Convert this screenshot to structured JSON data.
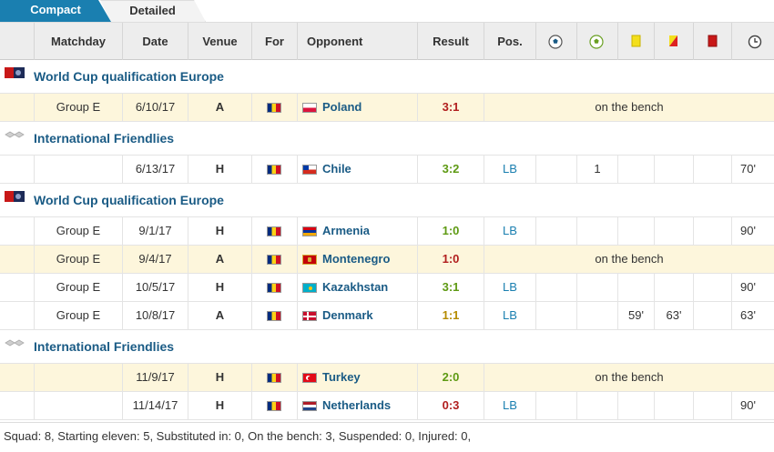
{
  "tabs": {
    "compact": "Compact",
    "detailed": "Detailed"
  },
  "columns": {
    "matchday": "Matchday",
    "date": "Date",
    "venue": "Venue",
    "for": "For",
    "opponent": "Opponent",
    "result": "Result",
    "pos": "Pos."
  },
  "header_icons": [
    "goals-ball-icon",
    "assists-ball-icon",
    "yellow-card-icon",
    "second-yellow-card-icon",
    "red-card-icon",
    "minutes-clock-icon"
  ],
  "competitions": {
    "wcq1": "World Cup qualification Europe",
    "fr1": "International Friendlies",
    "wcq2": "World Cup qualification Europe",
    "fr2": "International Friendlies"
  },
  "rows": [
    {
      "matchday": "Group E",
      "date": "6/10/17",
      "venue": "A",
      "opponent": "Poland",
      "result": "3:1",
      "result_type": "loss",
      "bench": "on the bench",
      "opp_flag": "poland"
    },
    {
      "matchday": "",
      "date": "6/13/17",
      "venue": "H",
      "opponent": "Chile",
      "result": "3:2",
      "result_type": "win",
      "pos": "LB",
      "assists": "1",
      "minutes": "70'",
      "opp_flag": "chile"
    },
    {
      "matchday": "Group E",
      "date": "9/1/17",
      "venue": "H",
      "opponent": "Armenia",
      "result": "1:0",
      "result_type": "win",
      "pos": "LB",
      "minutes": "90'",
      "opp_flag": "armenia"
    },
    {
      "matchday": "Group E",
      "date": "9/4/17",
      "venue": "A",
      "opponent": "Montenegro",
      "result": "1:0",
      "result_type": "loss",
      "bench": "on the bench",
      "opp_flag": "montenegro"
    },
    {
      "matchday": "Group E",
      "date": "10/5/17",
      "venue": "H",
      "opponent": "Kazakhstan",
      "result": "3:1",
      "result_type": "win",
      "pos": "LB",
      "minutes": "90'",
      "opp_flag": "kazakhstan"
    },
    {
      "matchday": "Group E",
      "date": "10/8/17",
      "venue": "A",
      "opponent": "Denmark",
      "result": "1:1",
      "result_type": "draw",
      "pos": "LB",
      "yellow": "59'",
      "second_yellow": "63'",
      "minutes": "63'",
      "opp_flag": "denmark"
    },
    {
      "matchday": "",
      "date": "11/9/17",
      "venue": "H",
      "opponent": "Turkey",
      "result": "2:0",
      "result_type": "win",
      "bench": "on the bench",
      "opp_flag": "turkey"
    },
    {
      "matchday": "",
      "date": "11/14/17",
      "venue": "H",
      "opponent": "Netherlands",
      "result": "0:3",
      "result_type": "loss",
      "pos": "LB",
      "minutes": "90'",
      "opp_flag": "netherlands"
    }
  ],
  "footer": "Squad: 8, Starting eleven: 5, Substituted in: 0, On the bench: 3, Suspended: 0, Injured: 0,",
  "colors": {
    "tab_active": "#1a7fb0",
    "win": "#5e9a13",
    "loss": "#b11e1e",
    "draw": "#b58b00",
    "bench_row": "#fdf6dc",
    "link": "#1a5b85"
  }
}
